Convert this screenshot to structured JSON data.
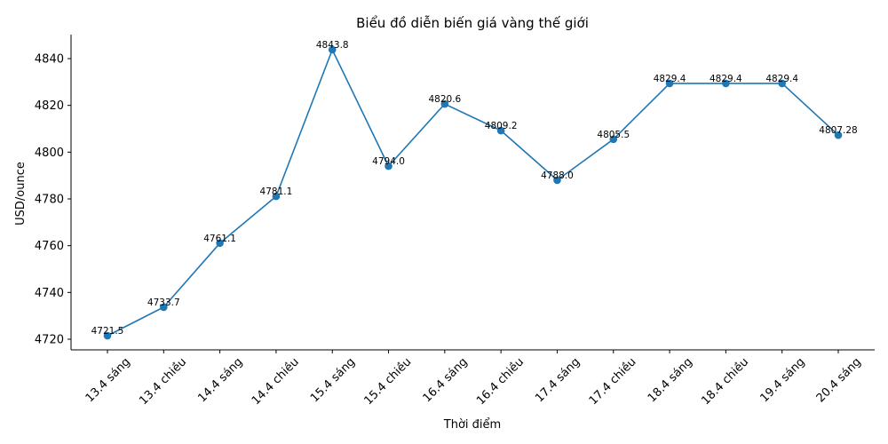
{
  "chart_data": {
    "type": "line",
    "title": "Biểu đồ diễn biến giá vàng thế giới",
    "xlabel": "Thời điểm",
    "ylabel": "USD/ounce",
    "categories": [
      "13.4 sáng",
      "13.4 chiều",
      "14.4 sáng",
      "14.4 chiều",
      "15.4 sáng",
      "15.4 chiều",
      "16.4 sáng",
      "16.4 chiều",
      "17.4 sáng",
      "17.4 chiều",
      "18.4 sáng",
      "18.4 chiều",
      "19.4 sáng",
      "20.4 sáng"
    ],
    "series": [
      {
        "name": "Giá vàng",
        "color": "#1f77b4",
        "values": [
          4721.5,
          4733.7,
          4761.1,
          4781.1,
          4843.8,
          4794.0,
          4820.6,
          4809.2,
          4788.0,
          4805.5,
          4829.4,
          4829.4,
          4829.4,
          4807.28
        ],
        "labels": [
          "4721.5",
          "4733.7",
          "4761.1",
          "4781.1",
          "4843.8",
          "4794.0",
          "4820.6",
          "4809.2",
          "4788.0",
          "4805.5",
          "4829.4",
          "4829.4",
          "4829.4",
          "4807.28"
        ]
      }
    ],
    "yticks": [
      4720,
      4740,
      4760,
      4780,
      4800,
      4820,
      4840
    ],
    "ylim": [
      4715.4,
      4849.9
    ],
    "grid": false,
    "legend": false
  }
}
